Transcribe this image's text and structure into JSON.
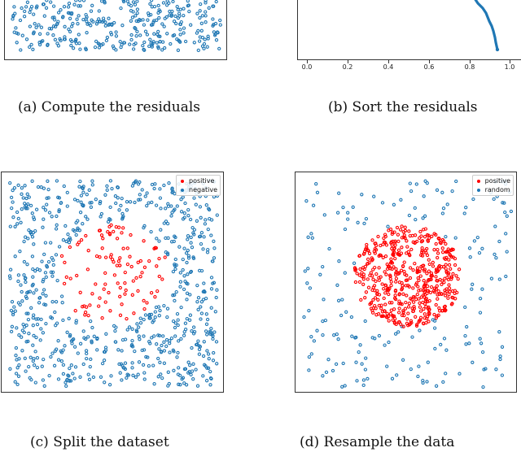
{
  "figure": {
    "panels": [
      {
        "id": "a",
        "caption": "(a) Compute the residuals"
      },
      {
        "id": "b",
        "caption": "(b) Sort the residuals"
      },
      {
        "id": "c",
        "caption": "(c) Split the dataset"
      },
      {
        "id": "d",
        "caption": "(d) Resample the data"
      }
    ],
    "colors": {
      "blue": "#1f77b4",
      "red": "#ff0000",
      "axis": "#333333"
    }
  },
  "chart_data": [
    {
      "panel": "a",
      "type": "scatter",
      "title": "(a) Compute the residuals",
      "description": "Uniform random points across a rectangular domain (top portion cropped)",
      "series": [
        {
          "name": "points",
          "color": "#1f77b4",
          "marker": "open-circle"
        }
      ],
      "grid": false
    },
    {
      "panel": "b",
      "type": "line",
      "title": "(b) Sort the residuals",
      "xlabel": "",
      "ylabel": "",
      "xticks": [
        "0.0",
        "0.2",
        "0.4",
        "0.6",
        "0.8",
        "1.0"
      ],
      "xlim": [
        0.0,
        1.0
      ],
      "series": [
        {
          "name": "sorted residuals",
          "color": "#1f77b4",
          "x": [
            0.83,
            0.86,
            0.9,
            0.92,
            0.96,
            0.98,
            1.0
          ],
          "y_relative": [
            1.0,
            0.88,
            0.72,
            0.52,
            0.34,
            0.16,
            0.0
          ]
        }
      ],
      "grid": false
    },
    {
      "panel": "c",
      "type": "scatter",
      "title": "(c) Split the dataset",
      "legend": [
        "positive",
        "negative"
      ],
      "legend_position": "upper right",
      "series": [
        {
          "name": "positive",
          "color": "#ff0000",
          "region": "central blob"
        },
        {
          "name": "negative",
          "color": "#1f77b4",
          "region": "surrounding"
        }
      ],
      "grid": false
    },
    {
      "panel": "d",
      "type": "scatter",
      "title": "(d) Resample the data",
      "legend": [
        "positive",
        "random"
      ],
      "legend_position": "upper right",
      "series": [
        {
          "name": "positive",
          "color": "#ff0000",
          "region": "dense central disk"
        },
        {
          "name": "random",
          "color": "#1f77b4",
          "region": "sparse uniform"
        }
      ],
      "grid": false
    }
  ]
}
